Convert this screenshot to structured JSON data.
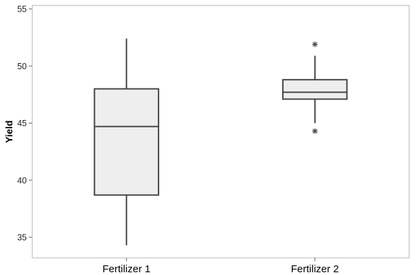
{
  "chart_data": {
    "type": "boxplot",
    "title": "",
    "xlabel": "",
    "ylabel": "Yield",
    "ylim": [
      33.2,
      55.3
    ],
    "yticks": [
      35,
      40,
      45,
      50,
      55
    ],
    "grid": false,
    "legend": "none",
    "colors": {
      "box_fill": "#eeeeee",
      "box_stroke": "#444444",
      "frame": "#b4b4b4"
    },
    "categories": [
      "Fertilizer 1",
      "Fertilizer 2"
    ],
    "boxes": [
      {
        "category": "Fertilizer 1",
        "whisker_low": 34.3,
        "q1": 38.7,
        "median": 44.7,
        "q3": 48.0,
        "whisker_high": 52.4,
        "outliers": []
      },
      {
        "category": "Fertilizer 2",
        "whisker_low": 45.0,
        "q1": 47.1,
        "median": 47.7,
        "q3": 48.8,
        "whisker_high": 50.9,
        "outliers": [
          51.9,
          44.3
        ]
      }
    ]
  }
}
